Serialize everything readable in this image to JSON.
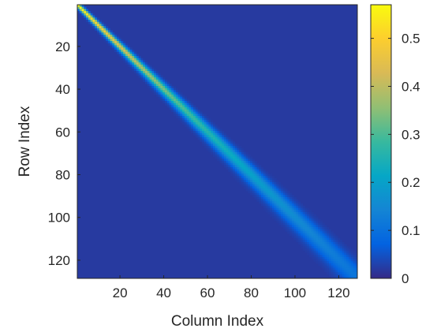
{
  "chart_data": {
    "type": "heatmap",
    "title": "",
    "xlabel": "Column Index",
    "ylabel": "Row Index",
    "rows": 128,
    "cols": 128,
    "x_ticks": [
      20,
      40,
      60,
      80,
      100,
      120
    ],
    "y_ticks": [
      20,
      40,
      60,
      80,
      100,
      120
    ],
    "xlim": [
      1,
      128
    ],
    "ylim": [
      1,
      128
    ],
    "y_direction": "top-to-bottom",
    "colorbar": {
      "colormap": "parula",
      "range": [
        0,
        0.57
      ],
      "ticks": [
        0,
        0.1,
        0.2,
        0.3,
        0.4,
        0.5
      ],
      "tick_labels": [
        "0",
        "0.1",
        "0.2",
        "0.3",
        "0.4",
        "0.5"
      ],
      "placement": "right"
    },
    "structure": "banded diagonal: peak 0.56 at row/col 1 decaying to ~0.11 at row/col 128; band widens along the diagonal; off-diagonal ~0.02",
    "diagonal_peak_start": 0.56,
    "diagonal_peak_end": 0.11,
    "background_value": 0.02
  },
  "colors": {
    "parula": [
      "#352a87",
      "#0363e1",
      "#1485d4",
      "#06a7c6",
      "#38b99e",
      "#92bf73",
      "#d9ba56",
      "#fcce2e",
      "#f9fb0e"
    ],
    "axis": "#262626",
    "background": "#ffffff"
  }
}
